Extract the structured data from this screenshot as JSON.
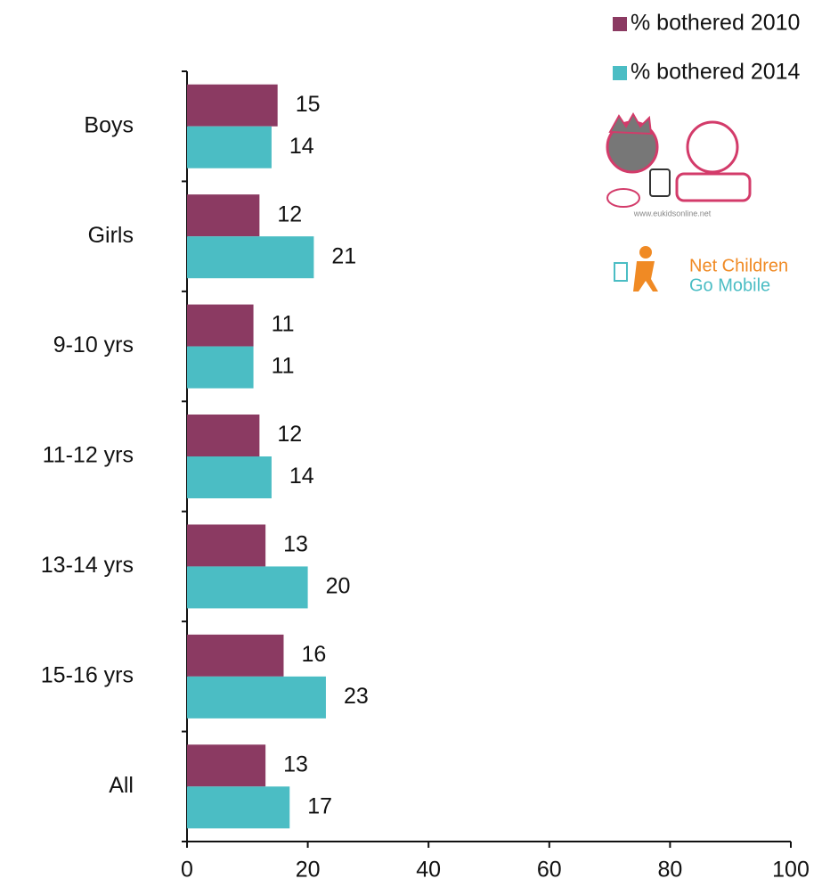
{
  "chart_data": {
    "type": "barh",
    "categories": [
      "Boys",
      "Girls",
      "9-10 yrs",
      "11-12 yrs",
      "13-14 yrs",
      "15-16 yrs",
      "All"
    ],
    "series": [
      {
        "name": "% bothered 2010",
        "color": "#8b3a62",
        "values": [
          15,
          12,
          11,
          12,
          13,
          16,
          13
        ]
      },
      {
        "name": "% bothered 2014",
        "color": "#4bbdc4",
        "values": [
          14,
          21,
          11,
          14,
          20,
          23,
          17
        ]
      }
    ],
    "xlim": [
      0,
      100
    ],
    "xticks": [
      0,
      20,
      40,
      60,
      80,
      100
    ],
    "legend": "upper right"
  },
  "logos": {
    "eukidsonline": "www.eukidsonline.net",
    "ncgm_line1": "Net Children",
    "ncgm_line2": "Go Mobile"
  }
}
